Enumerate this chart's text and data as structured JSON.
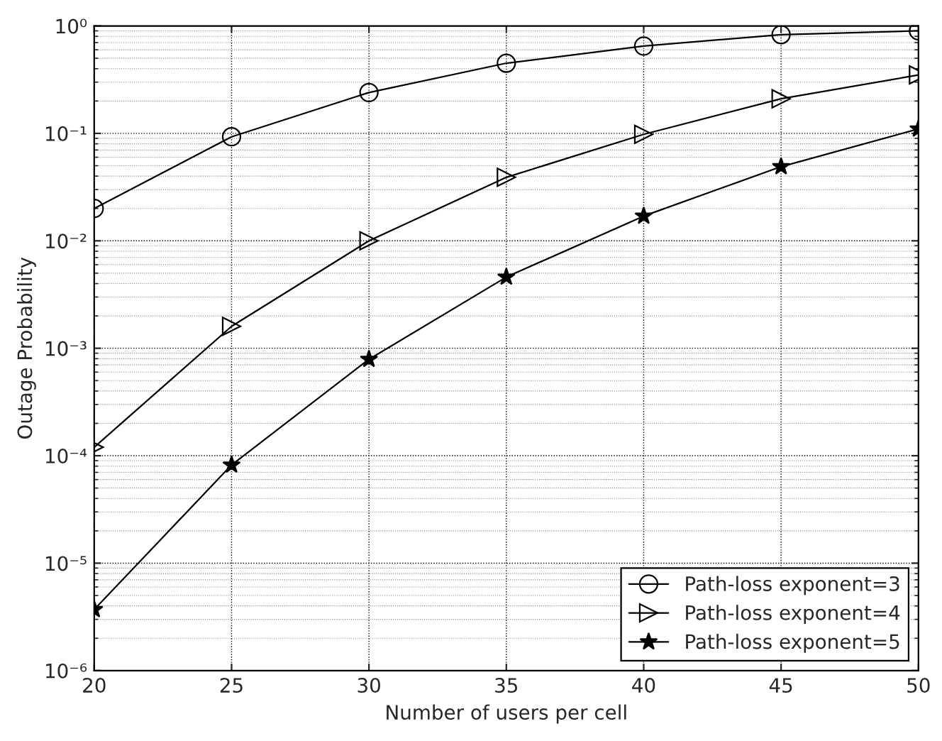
{
  "chart_data": {
    "type": "line",
    "xlabel": "Number of users per cell",
    "ylabel": "Outage Probability",
    "x": [
      20,
      25,
      30,
      35,
      40,
      45,
      50
    ],
    "series": [
      {
        "name": "Path-loss exponent=3",
        "color": "#000000",
        "marker": "circle",
        "values": [
          0.02,
          0.093,
          0.24,
          0.45,
          0.65,
          0.83,
          0.9
        ]
      },
      {
        "name": "Path-loss exponent=4",
        "color": "#000000",
        "marker": "triangle",
        "values": [
          0.00012,
          0.0016,
          0.01,
          0.039,
          0.098,
          0.21,
          0.35
        ]
      },
      {
        "name": "Path-loss exponent=5",
        "color": "#000000",
        "marker": "star",
        "values": [
          3.7e-06,
          8.2e-05,
          0.00079,
          0.0046,
          0.017,
          0.049,
          0.11
        ]
      }
    ],
    "log": "y",
    "xlim": [
      20,
      50
    ],
    "xticks": [
      20,
      25,
      30,
      35,
      40,
      45,
      50
    ],
    "ylim": [
      1e-06,
      1
    ],
    "yticks": [
      {
        "value": 1e-06,
        "label": "10⁻⁶"
      },
      {
        "value": 1e-05,
        "label": "10⁻⁵"
      },
      {
        "value": 0.0001,
        "label": "10⁻⁴"
      },
      {
        "value": 0.001,
        "label": "10⁻³"
      },
      {
        "value": 0.01,
        "label": "10⁻²"
      },
      {
        "value": 0.1,
        "label": "10⁻¹"
      },
      {
        "value": 1,
        "label": "10⁰"
      }
    ],
    "grid": true,
    "legend": "bottom right",
    "line_style": "solid"
  }
}
